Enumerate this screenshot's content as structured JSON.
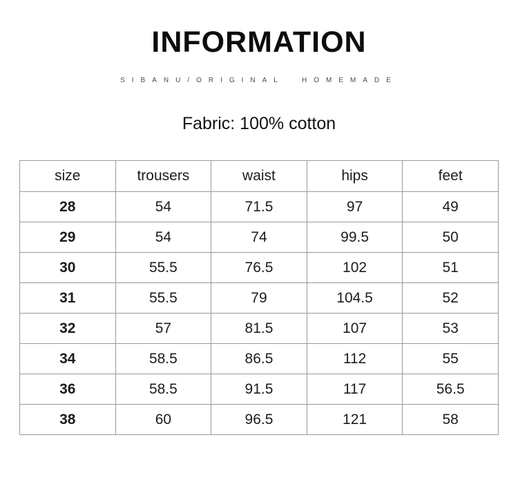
{
  "header": {
    "title": "INFORMATION",
    "subtitle": "SIBANU/ORIGINAL  HOMEMADE",
    "fabric_label": "Fabric: 100% cotton"
  },
  "size_table": {
    "columns": [
      "size",
      "trousers",
      "waist",
      "hips",
      "feet"
    ],
    "rows": [
      [
        "28",
        "54",
        "71.5",
        "97",
        "49"
      ],
      [
        "29",
        "54",
        "74",
        "99.5",
        "50"
      ],
      [
        "30",
        "55.5",
        "76.5",
        "102",
        "51"
      ],
      [
        "31",
        "55.5",
        "79",
        "104.5",
        "52"
      ],
      [
        "32",
        "57",
        "81.5",
        "107",
        "53"
      ],
      [
        "34",
        "58.5",
        "86.5",
        "112",
        "55"
      ],
      [
        "36",
        "58.5",
        "91.5",
        "117",
        "56.5"
      ],
      [
        "38",
        "60",
        "96.5",
        "121",
        "58"
      ]
    ]
  },
  "colors": {
    "table_border": "#999999",
    "title_text": "#0d0d0d",
    "subtitle_text": "#4a4a4a",
    "body_text": "#1c1c1c"
  }
}
